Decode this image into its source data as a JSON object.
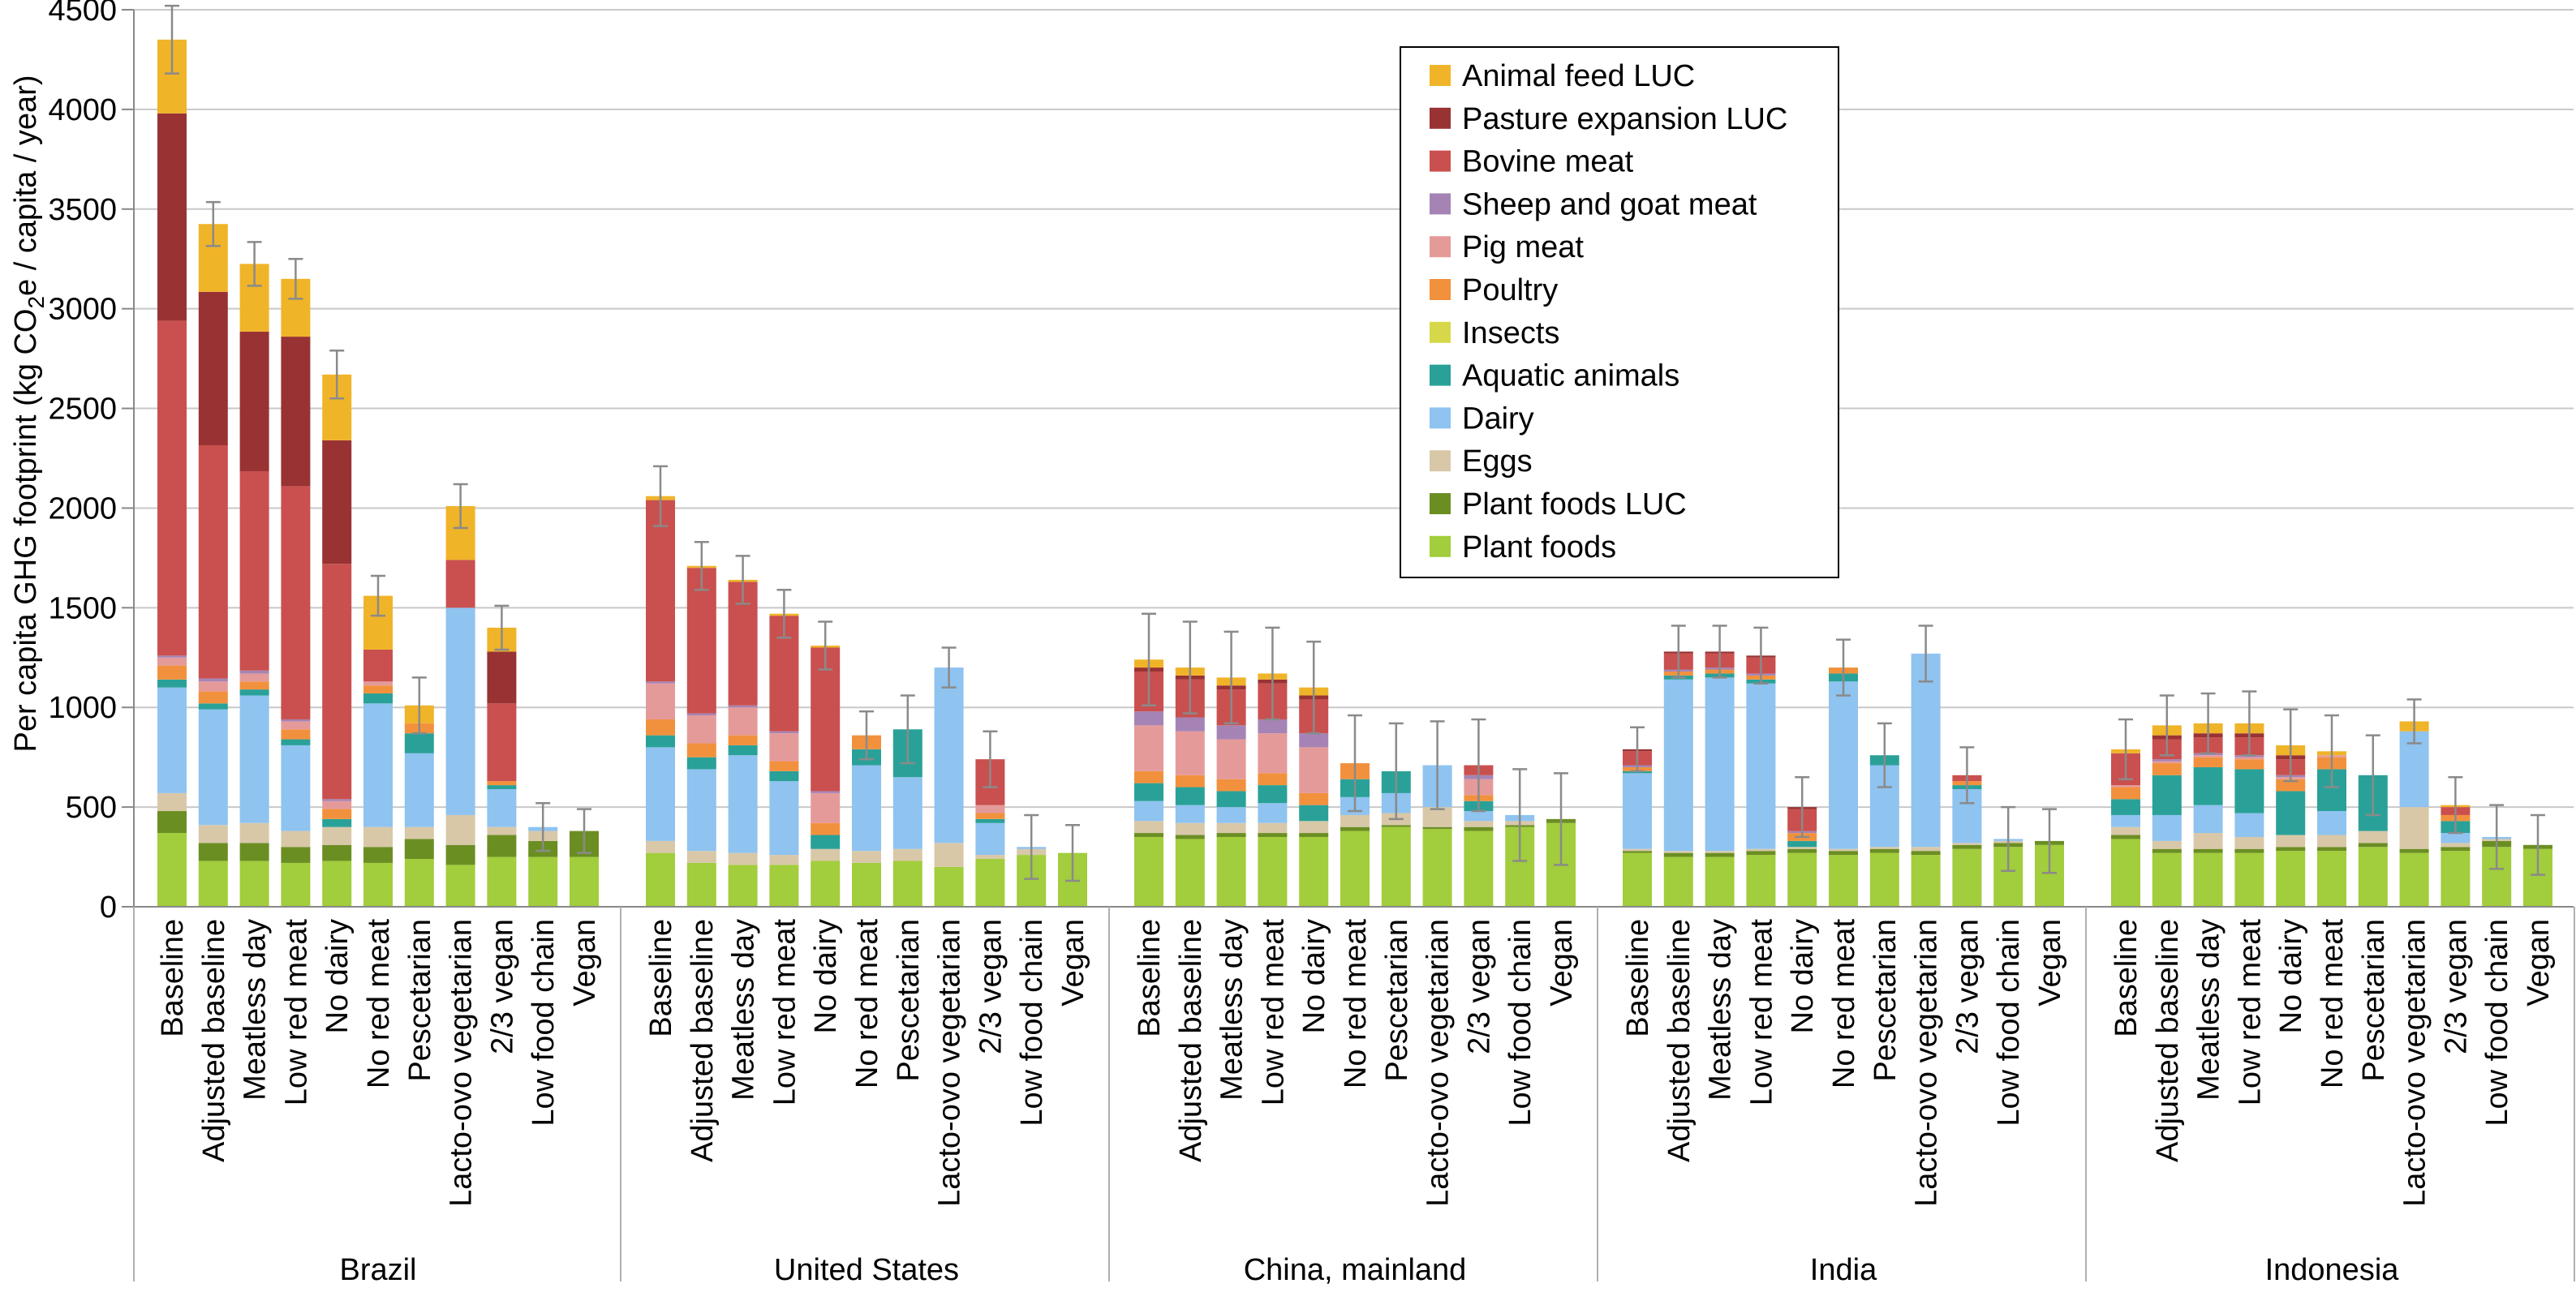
{
  "chart_data": {
    "type": "bar",
    "stacked": true,
    "ylabel": {
      "main": "Per capita GHG footprint (kg CO",
      "sub": "2",
      "rest": "e / capita / year)"
    },
    "ylim": [
      0,
      4500
    ],
    "yticks": [
      "0",
      "500",
      "1000",
      "1500",
      "2000",
      "2500",
      "3000",
      "3500",
      "4000",
      "4500"
    ],
    "grid": true,
    "legend_position": "top-center",
    "groups": [
      "Brazil",
      "United States",
      "China, mainland",
      "India",
      "Indonesia"
    ],
    "categories": [
      "Baseline",
      "Adjusted baseline",
      "Meatless day",
      "Low red meat",
      "No dairy",
      "No red meat",
      "Pescetarian",
      "Lacto-ovo vegetarian",
      "2/3 vegan",
      "Low food chain",
      "Vegan"
    ],
    "series": [
      {
        "name": "Plant foods",
        "color": "#a2cd3c"
      },
      {
        "name": "Plant foods LUC",
        "color": "#6b8e23"
      },
      {
        "name": "Eggs",
        "color": "#d8c8a8"
      },
      {
        "name": "Dairy",
        "color": "#8fc3f0"
      },
      {
        "name": "Aquatic animals",
        "color": "#2aa198"
      },
      {
        "name": "Insects",
        "color": "#d6d84a"
      },
      {
        "name": "Poultry",
        "color": "#f2913d"
      },
      {
        "name": "Pig meat",
        "color": "#e59a9a"
      },
      {
        "name": "Sheep and goat meat",
        "color": "#a584b5"
      },
      {
        "name": "Bovine meat",
        "color": "#c9504e"
      },
      {
        "name": "Pasture expansion LUC",
        "color": "#993333"
      },
      {
        "name": "Animal feed LUC",
        "color": "#f0b429"
      }
    ],
    "legend_order": [
      "Animal feed LUC",
      "Pasture expansion LUC",
      "Bovine meat",
      "Sheep and goat meat",
      "Pig meat",
      "Poultry",
      "Insects",
      "Aquatic animals",
      "Dairy",
      "Eggs",
      "Plant foods LUC",
      "Plant foods"
    ],
    "values": {
      "Brazil": [
        [
          370,
          110,
          90,
          530,
          40,
          0,
          70,
          40,
          10,
          1680,
          1040,
          370
        ],
        [
          230,
          90,
          90,
          580,
          30,
          0,
          60,
          50,
          15,
          1170,
          770,
          340
        ],
        [
          230,
          90,
          100,
          640,
          30,
          0,
          40,
          40,
          15,
          1000,
          700,
          340
        ],
        [
          220,
          80,
          80,
          430,
          30,
          0,
          50,
          40,
          10,
          1170,
          750,
          290
        ],
        [
          230,
          80,
          90,
          0,
          40,
          0,
          50,
          40,
          10,
          1180,
          620,
          330
        ],
        [
          220,
          80,
          100,
          620,
          50,
          0,
          40,
          20,
          0,
          160,
          0,
          270
        ],
        [
          240,
          100,
          60,
          370,
          100,
          0,
          50,
          0,
          0,
          0,
          0,
          90
        ],
        [
          210,
          100,
          150,
          1040,
          0,
          0,
          0,
          0,
          0,
          240,
          0,
          270
        ],
        [
          250,
          110,
          40,
          190,
          20,
          0,
          20,
          0,
          0,
          390,
          260,
          120
        ],
        [
          250,
          80,
          50,
          20,
          0,
          0,
          0,
          0,
          0,
          0,
          0,
          0
        ],
        [
          250,
          130,
          0,
          0,
          0,
          0,
          0,
          0,
          0,
          0,
          0,
          0
        ]
      ],
      "United States": [
        [
          270,
          0,
          60,
          470,
          60,
          0,
          80,
          180,
          10,
          910,
          0,
          20
        ],
        [
          220,
          0,
          60,
          410,
          60,
          0,
          70,
          140,
          10,
          730,
          0,
          10
        ],
        [
          210,
          0,
          60,
          490,
          50,
          0,
          50,
          140,
          10,
          620,
          0,
          10
        ],
        [
          210,
          0,
          50,
          370,
          50,
          0,
          50,
          140,
          10,
          580,
          0,
          10
        ],
        [
          230,
          0,
          60,
          0,
          70,
          0,
          60,
          150,
          10,
          720,
          0,
          10
        ],
        [
          220,
          0,
          60,
          430,
          80,
          0,
          70,
          0,
          0,
          0,
          0,
          0
        ],
        [
          230,
          0,
          60,
          360,
          240,
          0,
          0,
          0,
          0,
          0,
          0,
          0
        ],
        [
          200,
          0,
          120,
          880,
          0,
          0,
          0,
          0,
          0,
          0,
          0,
          0
        ],
        [
          240,
          0,
          20,
          160,
          20,
          0,
          30,
          40,
          0,
          230,
          0,
          0
        ],
        [
          260,
          0,
          30,
          10,
          0,
          0,
          0,
          0,
          0,
          0,
          0,
          0
        ],
        [
          270,
          0,
          0,
          0,
          0,
          0,
          0,
          0,
          0,
          0,
          0,
          0
        ]
      ],
      "China, mainland": [
        [
          350,
          20,
          60,
          100,
          90,
          0,
          60,
          230,
          70,
          200,
          20,
          40
        ],
        [
          340,
          20,
          60,
          90,
          90,
          0,
          60,
          220,
          70,
          190,
          20,
          40
        ],
        [
          350,
          20,
          50,
          80,
          80,
          0,
          60,
          200,
          70,
          180,
          20,
          40
        ],
        [
          350,
          20,
          50,
          100,
          90,
          0,
          60,
          200,
          70,
          180,
          20,
          30
        ],
        [
          350,
          20,
          60,
          0,
          80,
          0,
          60,
          230,
          70,
          170,
          20,
          40
        ],
        [
          380,
          20,
          60,
          90,
          90,
          0,
          80,
          0,
          0,
          0,
          0,
          0
        ],
        [
          400,
          10,
          60,
          100,
          110,
          0,
          0,
          0,
          0,
          0,
          0,
          0
        ],
        [
          390,
          10,
          100,
          210,
          0,
          0,
          0,
          0,
          0,
          0,
          0,
          0
        ],
        [
          380,
          20,
          30,
          50,
          50,
          0,
          30,
          80,
          20,
          50,
          0,
          0
        ],
        [
          400,
          10,
          20,
          30,
          0,
          0,
          0,
          0,
          0,
          0,
          0,
          0
        ],
        [
          420,
          20,
          0,
          0,
          0,
          0,
          0,
          0,
          0,
          0,
          0,
          0
        ]
      ],
      "India": [
        [
          270,
          10,
          10,
          380,
          10,
          0,
          20,
          0,
          10,
          70,
          10,
          0
        ],
        [
          250,
          20,
          10,
          860,
          20,
          0,
          20,
          0,
          10,
          80,
          10,
          0
        ],
        [
          250,
          20,
          10,
          870,
          20,
          0,
          20,
          0,
          10,
          70,
          10,
          0
        ],
        [
          260,
          20,
          10,
          830,
          20,
          0,
          20,
          0,
          10,
          80,
          10,
          0
        ],
        [
          270,
          20,
          10,
          0,
          30,
          0,
          40,
          0,
          10,
          110,
          10,
          0
        ],
        [
          260,
          20,
          10,
          840,
          40,
          0,
          30,
          0,
          0,
          0,
          0,
          0
        ],
        [
          270,
          20,
          10,
          410,
          50,
          0,
          0,
          0,
          0,
          0,
          0,
          0
        ],
        [
          260,
          20,
          20,
          970,
          0,
          0,
          0,
          0,
          0,
          0,
          0,
          0
        ],
        [
          290,
          20,
          10,
          270,
          20,
          0,
          20,
          0,
          0,
          30,
          0,
          0
        ],
        [
          300,
          20,
          10,
          10,
          0,
          0,
          0,
          0,
          0,
          0,
          0,
          0
        ],
        [
          310,
          20,
          0,
          0,
          0,
          0,
          0,
          0,
          0,
          0,
          0,
          0
        ]
      ],
      "Indonesia": [
        [
          340,
          20,
          40,
          60,
          80,
          0,
          60,
          10,
          0,
          160,
          0,
          20
        ],
        [
          270,
          20,
          40,
          130,
          200,
          0,
          60,
          10,
          10,
          100,
          20,
          50
        ],
        [
          270,
          20,
          80,
          140,
          190,
          0,
          50,
          10,
          10,
          80,
          20,
          50
        ],
        [
          270,
          20,
          60,
          120,
          220,
          0,
          50,
          10,
          10,
          90,
          20,
          50
        ],
        [
          280,
          20,
          60,
          0,
          220,
          0,
          60,
          10,
          10,
          80,
          20,
          50
        ],
        [
          280,
          20,
          60,
          120,
          210,
          0,
          60,
          10,
          0,
          0,
          0,
          20
        ],
        [
          300,
          20,
          60,
          0,
          280,
          0,
          0,
          0,
          0,
          0,
          0,
          0
        ],
        [
          270,
          20,
          210,
          380,
          0,
          0,
          0,
          0,
          0,
          0,
          0,
          50
        ],
        [
          280,
          20,
          20,
          50,
          60,
          0,
          30,
          0,
          0,
          40,
          0,
          10
        ],
        [
          300,
          30,
          10,
          10,
          0,
          0,
          0,
          0,
          0,
          0,
          0,
          0
        ],
        [
          290,
          20,
          0,
          0,
          0,
          0,
          0,
          0,
          0,
          0,
          0,
          0
        ]
      ]
    },
    "errors": {
      "Brazil": [
        170,
        110,
        110,
        100,
        120,
        100,
        140,
        110,
        110,
        120,
        110
      ],
      "United States": [
        150,
        120,
        120,
        120,
        120,
        120,
        170,
        100,
        140,
        160,
        140
      ],
      "China, mainland": [
        230,
        230,
        230,
        230,
        230,
        240,
        240,
        220,
        230,
        230,
        230
      ],
      "India": [
        110,
        130,
        130,
        140,
        150,
        140,
        160,
        140,
        140,
        160,
        160
      ],
      "Indonesia": [
        150,
        150,
        150,
        160,
        180,
        180,
        200,
        110,
        140,
        160,
        150
      ]
    }
  }
}
